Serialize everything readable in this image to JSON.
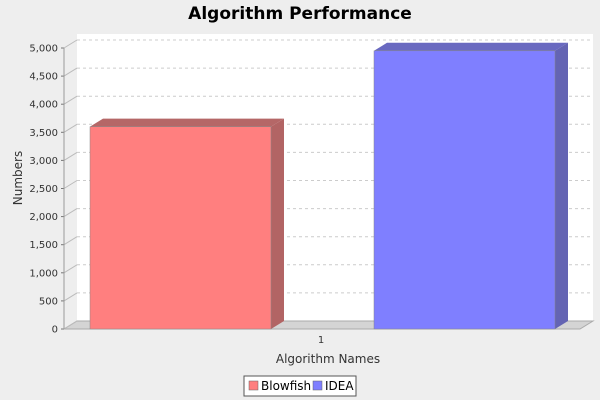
{
  "chart_data": {
    "type": "bar",
    "title": "Algorithm Performance",
    "xlabel": "Algorithm Names",
    "ylabel": "Numbers",
    "categories": [
      "1"
    ],
    "series": [
      {
        "name": "Blowfish",
        "values": [
          3600
        ],
        "color": "#ff7f7f",
        "side_color": "#b26464",
        "top_color": "#b56767"
      },
      {
        "name": "IDEA",
        "values": [
          4950
        ],
        "color": "#7f7fff",
        "side_color": "#6464b3",
        "top_color": "#6969c0"
      }
    ],
    "ylim": [
      0,
      5000
    ],
    "yticks": [
      "0",
      "500",
      "1,000",
      "1,500",
      "2,000",
      "2,500",
      "3,000",
      "3,500",
      "4,000",
      "4,500",
      "5,000"
    ],
    "grid": true,
    "legend_position": "bottom",
    "style": "3d"
  }
}
